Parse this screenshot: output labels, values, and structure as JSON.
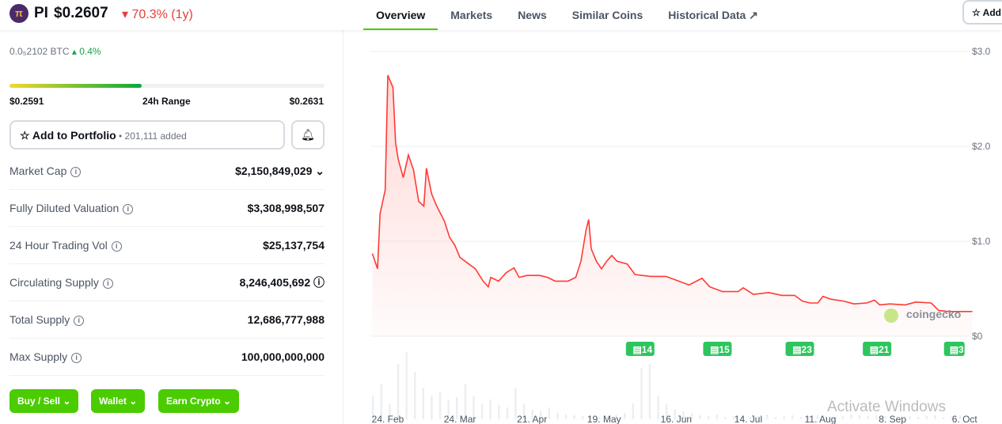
{
  "header": {
    "symbol": "PI",
    "price": "$0.2607",
    "change": "▾ 70.3% (1y)",
    "logo_text": "π"
  },
  "tabs": [
    "Overview",
    "Markets",
    "News",
    "Similar Coins",
    "Historical Data ↗"
  ],
  "add_button": "☆ Add",
  "btc": {
    "value": "0.0₅2102 BTC",
    "change": "▴ 0.4%"
  },
  "range": {
    "low": "$0.2591",
    "label": "24h Range",
    "high": "$0.2631",
    "fill_percent": 42
  },
  "portfolio": {
    "label": "☆ Add to Portfolio",
    "count": " • 201,111 added"
  },
  "stats": [
    {
      "label": "Market Cap",
      "value": "$2,150,849,029 ⌄"
    },
    {
      "label": "Fully Diluted Valuation",
      "value": "$3,308,998,507"
    },
    {
      "label": "24 Hour Trading Vol",
      "value": "$25,137,754"
    },
    {
      "label": "Circulating Supply",
      "value": "8,246,405,692 ⓘ"
    },
    {
      "label": "Total Supply",
      "value": "12,686,777,988"
    },
    {
      "label": "Max Supply",
      "value": "100,000,000,000"
    }
  ],
  "buttons": [
    "Buy / Sell ⌄",
    "Wallet ⌄",
    "Earn Crypto ⌄"
  ],
  "watermark": "Activate Windows",
  "chart_data": {
    "type": "area",
    "line_color": "#ff3a33",
    "ylim": [
      0,
      3
    ],
    "y_ticks": [
      "$0",
      "$1.0",
      "$2.0",
      "$3.0"
    ],
    "x_ticks": [
      "24. Feb",
      "24. Mar",
      "21. Apr",
      "19. May",
      "16. Jun",
      "14. Jul",
      "11. Aug",
      "8. Sep",
      "6. Oct"
    ],
    "x_tick_dates": [
      "2025-02-24",
      "2025-03-24",
      "2025-04-21",
      "2025-05-19",
      "2025-06-16",
      "2025-07-14",
      "2025-08-11",
      "2025-09-08",
      "2025-10-06"
    ],
    "brand": "coingecko",
    "news_markers": [
      {
        "date": "2025-06-02",
        "count": "14"
      },
      {
        "date": "2025-07-02",
        "count": "15"
      },
      {
        "date": "2025-08-03",
        "count": "23"
      },
      {
        "date": "2025-09-02",
        "count": "21"
      },
      {
        "date": "2025-10-02",
        "count": "3"
      }
    ],
    "series": [
      [
        "2025-02-18",
        0.87
      ],
      [
        "2025-02-20",
        0.71
      ],
      [
        "2025-02-21",
        1.29
      ],
      [
        "2025-02-23",
        1.54
      ],
      [
        "2025-02-24",
        2.75
      ],
      [
        "2025-02-26",
        2.62
      ],
      [
        "2025-02-27",
        2.04
      ],
      [
        "2025-02-28",
        1.87
      ],
      [
        "2025-03-02",
        1.67
      ],
      [
        "2025-03-04",
        1.91
      ],
      [
        "2025-03-06",
        1.75
      ],
      [
        "2025-03-08",
        1.42
      ],
      [
        "2025-03-10",
        1.37
      ],
      [
        "2025-03-11",
        1.77
      ],
      [
        "2025-03-13",
        1.5
      ],
      [
        "2025-03-15",
        1.37
      ],
      [
        "2025-03-18",
        1.21
      ],
      [
        "2025-03-20",
        1.04
      ],
      [
        "2025-03-22",
        0.96
      ],
      [
        "2025-03-24",
        0.83
      ],
      [
        "2025-03-26",
        0.79
      ],
      [
        "2025-03-30",
        0.71
      ],
      [
        "2025-04-02",
        0.58
      ],
      [
        "2025-04-04",
        0.52
      ],
      [
        "2025-04-05",
        0.62
      ],
      [
        "2025-04-08",
        0.58
      ],
      [
        "2025-04-11",
        0.67
      ],
      [
        "2025-04-14",
        0.72
      ],
      [
        "2025-04-16",
        0.62
      ],
      [
        "2025-04-19",
        0.64
      ],
      [
        "2025-04-24",
        0.64
      ],
      [
        "2025-04-27",
        0.62
      ],
      [
        "2025-04-30",
        0.58
      ],
      [
        "2025-05-05",
        0.58
      ],
      [
        "2025-05-08",
        0.62
      ],
      [
        "2025-05-10",
        0.79
      ],
      [
        "2025-05-12",
        1.12
      ],
      [
        "2025-05-13",
        1.23
      ],
      [
        "2025-05-14",
        0.92
      ],
      [
        "2025-05-16",
        0.79
      ],
      [
        "2025-05-18",
        0.71
      ],
      [
        "2025-05-20",
        0.79
      ],
      [
        "2025-05-22",
        0.85
      ],
      [
        "2025-05-24",
        0.79
      ],
      [
        "2025-05-28",
        0.76
      ],
      [
        "2025-05-31",
        0.65
      ],
      [
        "2025-06-06",
        0.63
      ],
      [
        "2025-06-12",
        0.63
      ],
      [
        "2025-06-17",
        0.58
      ],
      [
        "2025-06-21",
        0.54
      ],
      [
        "2025-06-26",
        0.61
      ],
      [
        "2025-06-29",
        0.52
      ],
      [
        "2025-07-04",
        0.47
      ],
      [
        "2025-07-10",
        0.47
      ],
      [
        "2025-07-12",
        0.51
      ],
      [
        "2025-07-16",
        0.44
      ],
      [
        "2025-07-22",
        0.46
      ],
      [
        "2025-07-27",
        0.43
      ],
      [
        "2025-08-01",
        0.43
      ],
      [
        "2025-08-04",
        0.37
      ],
      [
        "2025-08-07",
        0.35
      ],
      [
        "2025-08-10",
        0.35
      ],
      [
        "2025-08-12",
        0.42
      ],
      [
        "2025-08-15",
        0.39
      ],
      [
        "2025-08-20",
        0.37
      ],
      [
        "2025-08-24",
        0.34
      ],
      [
        "2025-08-29",
        0.35
      ],
      [
        "2025-09-01",
        0.38
      ],
      [
        "2025-09-03",
        0.33
      ],
      [
        "2025-09-07",
        0.34
      ],
      [
        "2025-09-13",
        0.33
      ],
      [
        "2025-09-17",
        0.36
      ],
      [
        "2025-09-23",
        0.35
      ],
      [
        "2025-09-26",
        0.27
      ],
      [
        "2025-09-30",
        0.26
      ],
      [
        "2025-10-09",
        0.26
      ]
    ]
  }
}
